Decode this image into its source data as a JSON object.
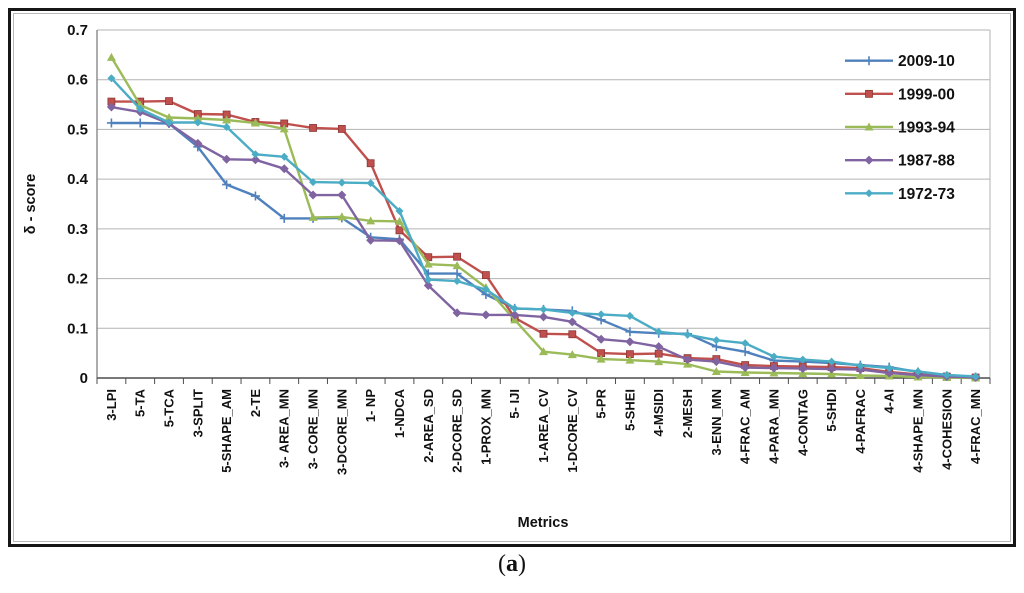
{
  "figure": {
    "caption_open": "(",
    "caption_letter": "a",
    "caption_close": ")"
  },
  "chart_data": {
    "type": "line",
    "title": "",
    "xlabel": "Metrics",
    "ylabel": "δ - score",
    "ylim": [
      0,
      0.7
    ],
    "ytick_step": 0.1,
    "yticks": [
      "0.7",
      "0.6",
      "0.5",
      "0.4",
      "0.3",
      "0.2",
      "0.1",
      "0"
    ],
    "grid": true,
    "legend_position": "top-right",
    "grid_color": "#b3b3b3",
    "axis_color": "#4d4d4d",
    "categories": [
      "3-LPI",
      "5-TA",
      "5-TCA",
      "3-SPLIT",
      "5-SHAPE_AM",
      "2-TE",
      "3- AREA_MN",
      "3- CORE_MN",
      "3-DCORE_MN",
      "1- NP",
      "1-NDCA",
      "2-AREA_SD",
      "2-DCORE_SD",
      "1-PROX_MN",
      "5- IJI",
      "1-AREA_CV",
      "1-DCORE_CV",
      "5-PR",
      "5-SHEI",
      "4-MSIDI",
      "2-MESH",
      "3-ENN_MN",
      "4-FRAC_AM",
      "4-PARA_MN",
      "4-CONTAG",
      "5-SHDI",
      "4-PAFRAC",
      "4-AI",
      "4-SHAPE_MN",
      "4-COHESION",
      "4-FRAC_MN"
    ],
    "series": [
      {
        "name": "2009-10",
        "color": "#4F81BD",
        "marker": "plus",
        "values": [
          0.513,
          0.513,
          0.512,
          0.465,
          0.389,
          0.366,
          0.321,
          0.321,
          0.322,
          0.283,
          0.279,
          0.21,
          0.21,
          0.168,
          0.14,
          0.138,
          0.135,
          0.117,
          0.093,
          0.09,
          0.089,
          0.063,
          0.053,
          0.035,
          0.033,
          0.03,
          0.026,
          0.022,
          0.012,
          0.004,
          0.002
        ]
      },
      {
        "name": "1999-00",
        "color": "#C0504D",
        "marker": "square",
        "values": [
          0.556,
          0.556,
          0.557,
          0.531,
          0.53,
          0.515,
          0.512,
          0.503,
          0.501,
          0.432,
          0.297,
          0.243,
          0.244,
          0.207,
          0.121,
          0.089,
          0.088,
          0.05,
          0.048,
          0.049,
          0.04,
          0.038,
          0.026,
          0.024,
          0.023,
          0.022,
          0.02,
          0.012,
          0.007,
          0.003,
          0.001
        ]
      },
      {
        "name": "1993-94",
        "color": "#9BBB59",
        "marker": "triangle",
        "values": [
          0.645,
          0.549,
          0.524,
          0.522,
          0.519,
          0.513,
          0.501,
          0.323,
          0.324,
          0.316,
          0.315,
          0.229,
          0.226,
          0.182,
          0.117,
          0.053,
          0.047,
          0.038,
          0.036,
          0.033,
          0.028,
          0.013,
          0.011,
          0.01,
          0.009,
          0.008,
          0.005,
          0.004,
          0.002,
          0.001,
          0.0
        ]
      },
      {
        "name": "1987-88",
        "color": "#8064A2",
        "marker": "diamond",
        "values": [
          0.545,
          0.535,
          0.512,
          0.472,
          0.44,
          0.439,
          0.421,
          0.368,
          0.368,
          0.277,
          0.276,
          0.186,
          0.131,
          0.127,
          0.127,
          0.123,
          0.113,
          0.078,
          0.073,
          0.063,
          0.037,
          0.033,
          0.021,
          0.02,
          0.019,
          0.018,
          0.017,
          0.01,
          0.006,
          0.003,
          0.001
        ]
      },
      {
        "name": "1972-73",
        "color": "#4BACC6",
        "marker": "diamond-small",
        "values": [
          0.603,
          0.541,
          0.514,
          0.514,
          0.505,
          0.45,
          0.445,
          0.394,
          0.393,
          0.392,
          0.336,
          0.198,
          0.195,
          0.178,
          0.14,
          0.138,
          0.131,
          0.128,
          0.125,
          0.093,
          0.087,
          0.076,
          0.07,
          0.043,
          0.037,
          0.033,
          0.025,
          0.02,
          0.013,
          0.006,
          0.003
        ]
      }
    ]
  }
}
